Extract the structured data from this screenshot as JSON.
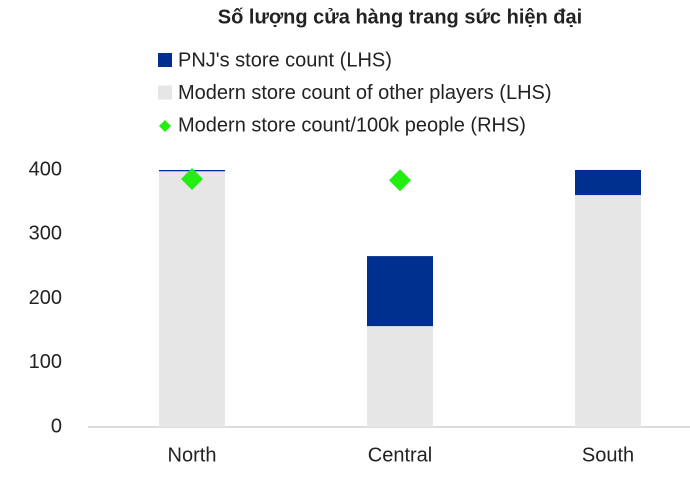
{
  "chart_data": {
    "type": "bar",
    "stacked": true,
    "title": "Số lượng cửa hàng trang sức hiện đại",
    "categories": [
      "North",
      "Central",
      "South"
    ],
    "series": [
      {
        "name": "PNJ's store count (LHS)",
        "color": "#00308f",
        "values": [
          2,
          109,
          39
        ]
      },
      {
        "name": "Modern store count of other players (LHS)",
        "color": "#e6e6e6",
        "values": [
          398,
          157,
          361
        ]
      },
      {
        "name": "Modern store count/100k people (RHS)",
        "color": "#22ee11",
        "type": "scatter",
        "values": [
          386,
          384,
          null
        ]
      }
    ],
    "ylim": [
      0,
      400
    ],
    "yticks": [
      0,
      100,
      200,
      300,
      400
    ],
    "grid": false
  }
}
